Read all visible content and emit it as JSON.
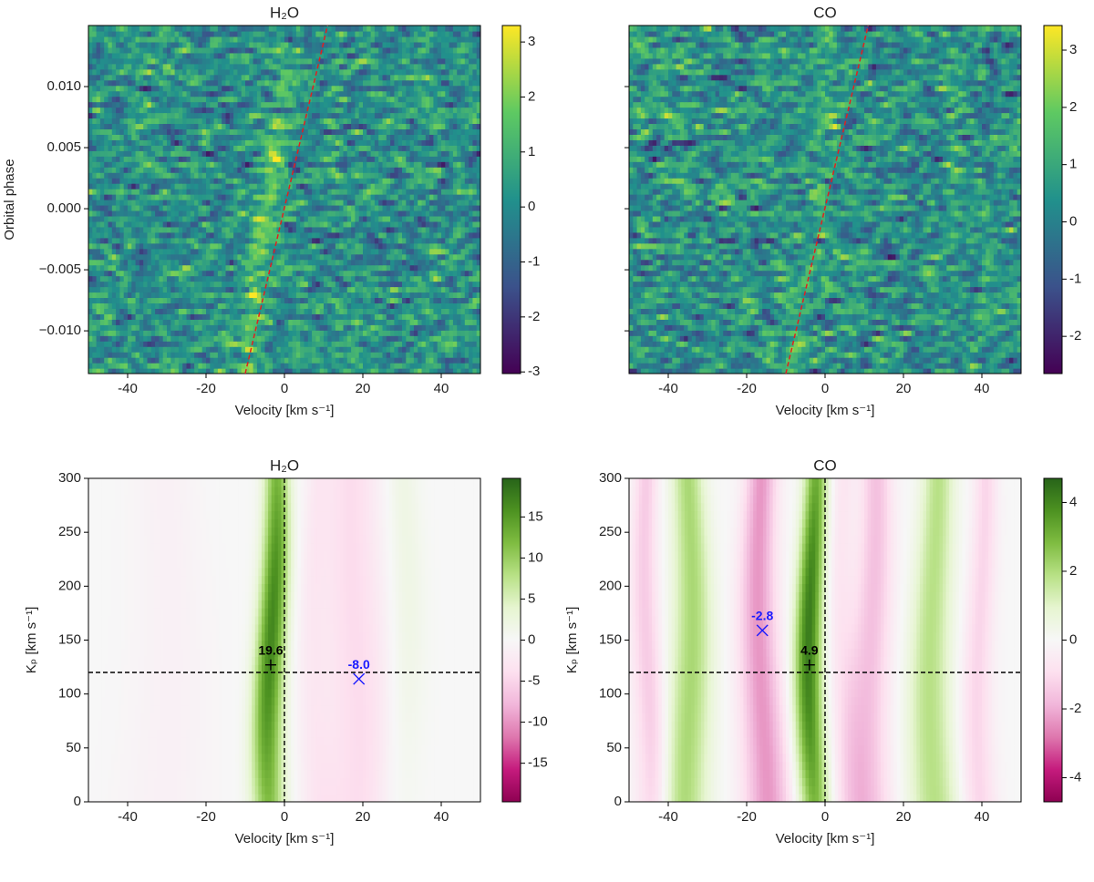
{
  "chart_data": [
    {
      "type": "heatmap",
      "title": "H₂O",
      "xlabel": "Velocity [km s⁻¹]",
      "ylabel": "Orbital phase",
      "xlim": [
        -50,
        50
      ],
      "ylim": [
        -0.0135,
        0.015
      ],
      "xticks": [
        -40,
        -20,
        0,
        20,
        40
      ],
      "yticks": [
        {
          "value": -0.01,
          "label": "−0.010"
        },
        {
          "value": -0.005,
          "label": "−0.005"
        },
        {
          "value": 0,
          "label": "0.000"
        },
        {
          "value": 0.005,
          "label": "0.005"
        },
        {
          "value": 0.01,
          "label": "0.010"
        }
      ],
      "colormap": [
        "#440154",
        "#3b528b",
        "#21918c",
        "#5ec962",
        "#fde725"
      ],
      "clim": [
        -3.03,
        3.3
      ],
      "cticks": [
        -3,
        -2,
        -1,
        0,
        1,
        2,
        3
      ],
      "trail": {
        "x": [
          -10,
          11
        ],
        "y": [
          -0.0135,
          0.015
        ],
        "color": "#e02020"
      }
    },
    {
      "type": "heatmap",
      "title": "CO",
      "xlabel": "Velocity [km s⁻¹]",
      "xlim": [
        -50,
        50
      ],
      "ylim": [
        -0.0135,
        0.015
      ],
      "xticks": [
        -40,
        -20,
        0,
        20,
        40
      ],
      "yticks": [
        -0.01,
        -0.005,
        0,
        0.005,
        0.01
      ],
      "colormap": [
        "#440154",
        "#3b528b",
        "#21918c",
        "#5ec962",
        "#fde725"
      ],
      "clim": [
        -2.65,
        3.43
      ],
      "cticks": [
        -2,
        -1,
        0,
        1,
        2,
        3
      ],
      "trail": {
        "x": [
          -10,
          11
        ],
        "y": [
          -0.0135,
          0.015
        ],
        "color": "#e02020"
      }
    },
    {
      "type": "heatmap",
      "title": "H₂O",
      "xlabel": "Velocity [km s⁻¹]",
      "ylabel": "Kₚ [km s⁻¹]",
      "xlim": [
        -50,
        50
      ],
      "ylim": [
        0,
        300
      ],
      "xticks": [
        -40,
        -20,
        0,
        20,
        40
      ],
      "yticks": [
        0,
        50,
        100,
        150,
        200,
        250,
        300
      ],
      "colormap": [
        "#8e0152",
        "#c51b7d",
        "#de77ae",
        "#f1b6da",
        "#fde0ef",
        "#f7f7f7",
        "#e6f5d0",
        "#b8e186",
        "#7fbc41",
        "#4d9221",
        "#276419"
      ],
      "clim": [
        -19.7,
        19.7
      ],
      "cticks": [
        -15,
        -10,
        -5,
        0,
        5,
        10,
        15
      ],
      "vline": 0,
      "hline": 120,
      "markers": [
        {
          "x": -3.5,
          "y": 127,
          "symbol": "+",
          "color": "#000000",
          "label": "19.6"
        },
        {
          "x": 19,
          "y": 114,
          "symbol": "x",
          "color": "#1a1aff",
          "label": "-8.0"
        }
      ]
    },
    {
      "type": "heatmap",
      "title": "CO",
      "xlabel": "Velocity [km s⁻¹]",
      "ylabel": "Kₚ [km s⁻¹]",
      "xlim": [
        -50,
        50
      ],
      "ylim": [
        0,
        300
      ],
      "xticks": [
        -40,
        -20,
        0,
        20,
        40
      ],
      "yticks": [
        0,
        50,
        100,
        150,
        200,
        250,
        300
      ],
      "colormap": [
        "#8e0152",
        "#c51b7d",
        "#de77ae",
        "#f1b6da",
        "#fde0ef",
        "#f7f7f7",
        "#e6f5d0",
        "#b8e186",
        "#7fbc41",
        "#4d9221",
        "#276419"
      ],
      "clim": [
        -4.7,
        4.7
      ],
      "cticks": [
        -4,
        -2,
        0,
        2,
        4
      ],
      "vline": 0,
      "hline": 120,
      "markers": [
        {
          "x": -4,
          "y": 127,
          "symbol": "+",
          "color": "#000000",
          "label": "4.9"
        },
        {
          "x": -16,
          "y": 159,
          "symbol": "x",
          "color": "#1a1aff",
          "label": "-2.8"
        }
      ]
    }
  ]
}
